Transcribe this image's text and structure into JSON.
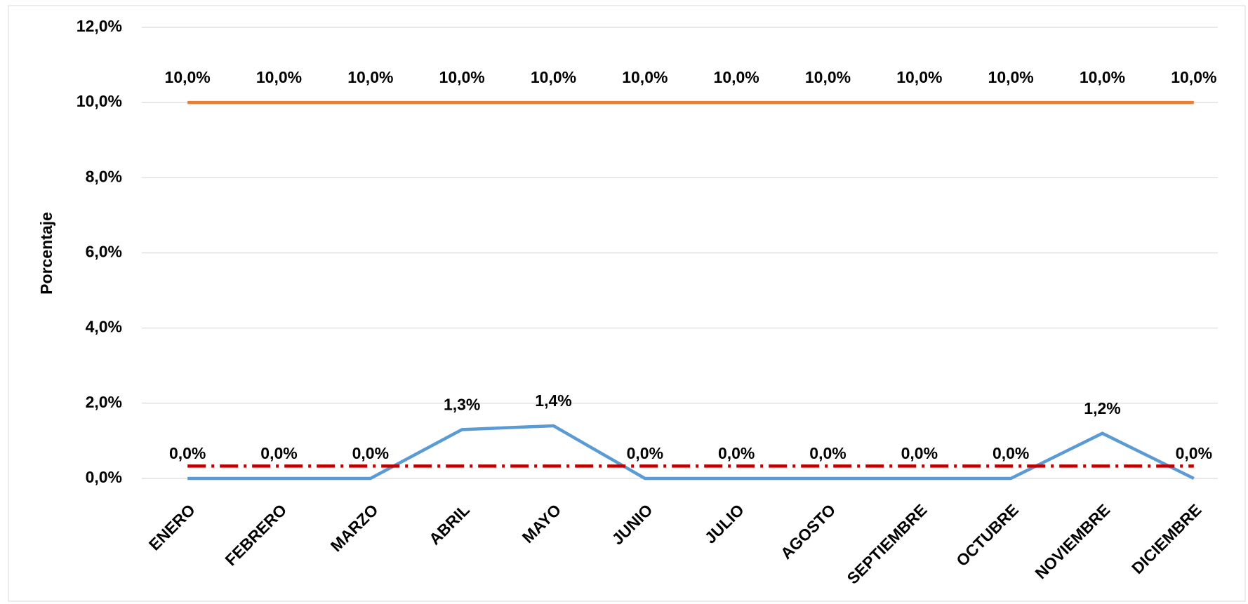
{
  "chart_data": {
    "type": "line",
    "y_label": "Porcentaje",
    "categories": [
      "ENERO",
      "FEBRERO",
      "MARZO",
      "ABRIL",
      "MAYO",
      "JUNIO",
      "JULIO",
      "AGOSTO",
      "SEPTIEMBRE",
      "OCTUBRE",
      "NOVIEMBRE",
      "DICIEMBRE"
    ],
    "series": [
      {
        "color": "#ed7d31",
        "line_style": "solid",
        "values": [
          10,
          10,
          10,
          10,
          10,
          10,
          10,
          10,
          10,
          10,
          10,
          10
        ],
        "value_labels": [
          "10,0%",
          "10,0%",
          "10,0%",
          "10,0%",
          "10,0%",
          "10,0%",
          "10,0%",
          "10,0%",
          "10,0%",
          "10,0%",
          "10,0%",
          "10,0%"
        ]
      },
      {
        "color": "#5b9bd5",
        "line_style": "solid",
        "values": [
          0,
          0,
          0,
          1.3,
          1.4,
          0,
          0,
          0,
          0,
          0,
          1.2,
          0
        ],
        "value_labels": [
          "0,0%",
          "0,0%",
          "0,0%",
          "1,3%",
          "1,4%",
          "0,0%",
          "0,0%",
          "0,0%",
          "0,0%",
          "0,0%",
          "1,2%",
          "0,0%"
        ]
      },
      {
        "color": "#c00000",
        "line_style": "dashdot",
        "values": [
          0.33,
          0.33,
          0.33,
          0.33,
          0.33,
          0.33,
          0.33,
          0.33,
          0.33,
          0.33,
          0.33,
          0.33
        ]
      }
    ],
    "ylim": [
      0,
      12
    ],
    "yticks": [
      {
        "value": 0,
        "label": "0,0%"
      },
      {
        "value": 2,
        "label": "2,0%"
      },
      {
        "value": 4,
        "label": "4,0%"
      },
      {
        "value": 6,
        "label": "6,0%"
      },
      {
        "value": 8,
        "label": "8,0%"
      },
      {
        "value": 10,
        "label": "10,0%"
      },
      {
        "value": 12,
        "label": "12,0%"
      }
    ],
    "grid": true
  }
}
